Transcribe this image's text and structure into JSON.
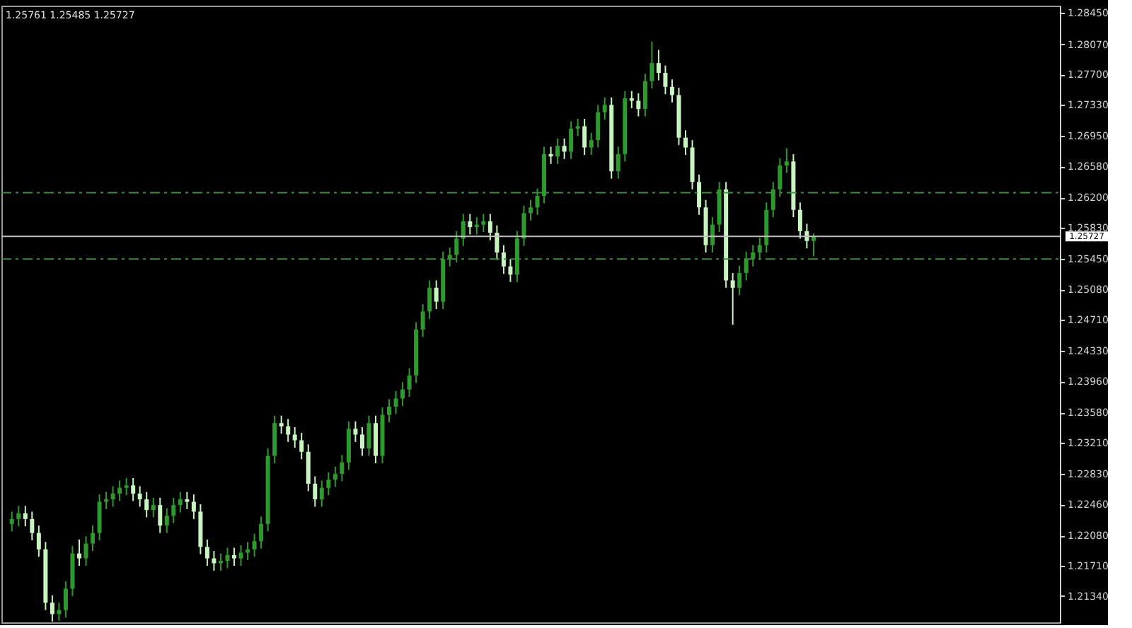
{
  "chart_data": {
    "type": "candlestick",
    "categories": [
      null,
      null,
      null,
      null,
      null,
      null,
      null,
      null,
      null,
      null,
      null,
      null,
      null,
      null,
      null,
      null,
      null,
      null,
      null,
      null,
      null,
      null,
      null,
      null,
      null,
      null,
      null,
      null,
      null,
      null,
      null,
      null,
      null,
      null,
      null,
      null,
      null,
      null,
      null,
      null,
      null,
      null,
      null,
      null,
      null,
      null,
      null,
      null,
      null,
      null,
      null,
      null,
      null,
      null,
      null,
      null,
      null,
      null,
      null,
      null,
      null,
      null,
      null,
      null,
      null,
      null,
      null,
      null,
      null,
      null,
      null,
      null,
      null,
      null,
      null,
      null,
      null,
      null,
      null,
      null,
      null,
      null,
      null,
      null,
      null,
      null,
      null,
      null,
      null,
      null,
      null,
      null,
      null,
      null,
      null,
      null,
      null,
      null,
      null,
      null,
      null,
      null,
      null,
      null,
      null,
      null,
      null,
      null,
      null,
      null,
      null,
      null,
      null,
      null,
      null,
      null,
      null,
      null,
      null,
      null,
      null,
      null,
      null,
      null,
      null,
      null,
      null,
      null,
      null,
      null,
      null,
      null,
      null,
      null,
      null,
      null,
      null,
      null,
      null,
      null,
      null,
      null,
      null,
      null,
      null,
      null,
      null,
      null,
      null,
      null,
      null,
      null,
      null,
      null,
      null
    ],
    "ohlc": [
      [
        1.2222,
        1.2237,
        1.2213,
        1.2228
      ],
      [
        1.2228,
        1.2244,
        1.2219,
        1.2235
      ],
      [
        1.2235,
        1.2244,
        1.2219,
        1.2228
      ],
      [
        1.2228,
        1.2237,
        1.2202,
        1.2211
      ],
      [
        1.2211,
        1.222,
        1.2182,
        1.2191
      ],
      [
        1.2191,
        1.22,
        1.2117,
        1.2126
      ],
      [
        1.2126,
        1.2135,
        1.2103,
        1.2112
      ],
      [
        1.2112,
        1.2126,
        1.2104,
        1.2117
      ],
      [
        1.2117,
        1.2152,
        1.2108,
        1.2143
      ],
      [
        1.2143,
        1.2195,
        1.2134,
        1.2186
      ],
      [
        1.2186,
        1.2203,
        1.2171,
        1.218
      ],
      [
        1.218,
        1.2207,
        1.2171,
        1.2198
      ],
      [
        1.2198,
        1.222,
        1.2189,
        1.2211
      ],
      [
        1.2211,
        1.2258,
        1.2202,
        1.2249
      ],
      [
        1.2249,
        1.2261,
        1.224,
        1.2252
      ],
      [
        1.2252,
        1.2268,
        1.2243,
        1.2259
      ],
      [
        1.2259,
        1.2275,
        1.225,
        1.2266
      ],
      [
        1.2266,
        1.2278,
        1.2257,
        1.2269
      ],
      [
        1.2269,
        1.2278,
        1.225,
        1.2259
      ],
      [
        1.2259,
        1.2268,
        1.2243,
        1.2252
      ],
      [
        1.2252,
        1.2261,
        1.223,
        1.2239
      ],
      [
        1.2239,
        1.2254,
        1.223,
        1.2245
      ],
      [
        1.2245,
        1.2254,
        1.2211,
        1.222
      ],
      [
        1.222,
        1.2241,
        1.2211,
        1.2232
      ],
      [
        1.2232,
        1.2254,
        1.2223,
        1.2245
      ],
      [
        1.2245,
        1.2261,
        1.2236,
        1.2252
      ],
      [
        1.2252,
        1.2261,
        1.224,
        1.2249
      ],
      [
        1.2249,
        1.2258,
        1.2228,
        1.2237
      ],
      [
        1.2237,
        1.2246,
        1.2185,
        1.2194
      ],
      [
        1.2194,
        1.2203,
        1.2171,
        1.218
      ],
      [
        1.218,
        1.2189,
        1.2165,
        1.2174
      ],
      [
        1.2174,
        1.2186,
        1.2165,
        1.2177
      ],
      [
        1.2177,
        1.2193,
        1.2168,
        1.2184
      ],
      [
        1.2184,
        1.2193,
        1.2171,
        1.218
      ],
      [
        1.218,
        1.2196,
        1.2171,
        1.2187
      ],
      [
        1.2187,
        1.22,
        1.2178,
        1.2191
      ],
      [
        1.2191,
        1.221,
        1.2182,
        1.2201
      ],
      [
        1.2201,
        1.2231,
        1.2192,
        1.2222
      ],
      [
        1.2222,
        1.2314,
        1.2213,
        1.2305
      ],
      [
        1.2305,
        1.2354,
        1.2296,
        1.2345
      ],
      [
        1.2345,
        1.2354,
        1.2332,
        1.2341
      ],
      [
        1.2341,
        1.235,
        1.2322,
        1.2331
      ],
      [
        1.2331,
        1.234,
        1.2315,
        1.2324
      ],
      [
        1.2324,
        1.2333,
        1.2301,
        1.231
      ],
      [
        1.231,
        1.2319,
        1.2262,
        1.2271
      ],
      [
        1.2271,
        1.228,
        1.2243,
        1.2252
      ],
      [
        1.2252,
        1.2275,
        1.2243,
        1.2266
      ],
      [
        1.2266,
        1.2285,
        1.2257,
        1.2276
      ],
      [
        1.2276,
        1.2292,
        1.2267,
        1.2283
      ],
      [
        1.2283,
        1.2306,
        1.2274,
        1.2297
      ],
      [
        1.2297,
        1.2347,
        1.2288,
        1.2338
      ],
      [
        1.2338,
        1.2347,
        1.2322,
        1.2331
      ],
      [
        1.2331,
        1.234,
        1.2305,
        1.2314
      ],
      [
        1.2314,
        1.2354,
        1.2305,
        1.2345
      ],
      [
        1.2345,
        1.2354,
        1.2296,
        1.2305
      ],
      [
        1.2305,
        1.2364,
        1.2296,
        1.2355
      ],
      [
        1.2355,
        1.2374,
        1.2346,
        1.2365
      ],
      [
        1.2365,
        1.2384,
        1.2356,
        1.2375
      ],
      [
        1.2375,
        1.2395,
        1.2366,
        1.2386
      ],
      [
        1.2386,
        1.2412,
        1.2377,
        1.2403
      ],
      [
        1.2403,
        1.2468,
        1.2394,
        1.2459
      ],
      [
        1.2459,
        1.249,
        1.245,
        1.2481
      ],
      [
        1.2481,
        1.2519,
        1.2472,
        1.251
      ],
      [
        1.251,
        1.2519,
        1.2484,
        1.2493
      ],
      [
        1.2493,
        1.2554,
        1.2484,
        1.2545
      ],
      [
        1.2545,
        1.2559,
        1.2536,
        1.255
      ],
      [
        1.255,
        1.2579,
        1.2541,
        1.257
      ],
      [
        1.257,
        1.26,
        1.2561,
        1.2591
      ],
      [
        1.2591,
        1.26,
        1.2575,
        1.2584
      ],
      [
        1.2584,
        1.2596,
        1.2575,
        1.2587
      ],
      [
        1.2587,
        1.26,
        1.2578,
        1.2591
      ],
      [
        1.2591,
        1.26,
        1.2568,
        1.2577
      ],
      [
        1.2577,
        1.2586,
        1.2544,
        1.2553
      ],
      [
        1.2553,
        1.2562,
        1.2527,
        1.2536
      ],
      [
        1.2536,
        1.2545,
        1.2517,
        1.2526
      ],
      [
        1.2526,
        1.2579,
        1.2517,
        1.257
      ],
      [
        1.257,
        1.261,
        1.2561,
        1.2601
      ],
      [
        1.2601,
        1.2617,
        1.2592,
        1.2608
      ],
      [
        1.2608,
        1.2631,
        1.2599,
        1.2622
      ],
      [
        1.2622,
        1.2682,
        1.2613,
        1.2673
      ],
      [
        1.2673,
        1.2682,
        1.2661,
        1.267
      ],
      [
        1.267,
        1.2692,
        1.2661,
        1.2683
      ],
      [
        1.2683,
        1.2692,
        1.2667,
        1.2676
      ],
      [
        1.2676,
        1.2713,
        1.2667,
        1.2704
      ],
      [
        1.2704,
        1.2716,
        1.2695,
        1.2707
      ],
      [
        1.2707,
        1.2716,
        1.2672,
        1.2681
      ],
      [
        1.2681,
        1.2699,
        1.2672,
        1.269
      ],
      [
        1.269,
        1.2733,
        1.2681,
        1.2724
      ],
      [
        1.2724,
        1.2742,
        1.2715,
        1.2733
      ],
      [
        1.2733,
        1.2742,
        1.2643,
        1.2652
      ],
      [
        1.2652,
        1.2682,
        1.2643,
        1.2673
      ],
      [
        1.2673,
        1.275,
        1.2664,
        1.2741
      ],
      [
        1.2741,
        1.275,
        1.2729,
        1.2738
      ],
      [
        1.2738,
        1.2747,
        1.2719,
        1.2728
      ],
      [
        1.2728,
        1.2771,
        1.2719,
        1.2762
      ],
      [
        1.2762,
        1.281,
        1.2753,
        1.2784
      ],
      [
        1.2784,
        1.28,
        1.2763,
        1.2772
      ],
      [
        1.2772,
        1.2781,
        1.2746,
        1.2755
      ],
      [
        1.2755,
        1.2764,
        1.2736,
        1.2745
      ],
      [
        1.2745,
        1.2754,
        1.2684,
        1.2693
      ],
      [
        1.2693,
        1.2702,
        1.2672,
        1.2681
      ],
      [
        1.2681,
        1.269,
        1.263,
        1.2639
      ],
      [
        1.2639,
        1.2648,
        1.2599,
        1.2608
      ],
      [
        1.2608,
        1.2617,
        1.2553,
        1.2562
      ],
      [
        1.2562,
        1.2596,
        1.2553,
        1.2587
      ],
      [
        1.2587,
        1.2639,
        1.2578,
        1.263
      ],
      [
        1.263,
        1.2639,
        1.251,
        1.2519
      ],
      [
        1.2519,
        1.2528,
        1.2465,
        1.251
      ],
      [
        1.251,
        1.2537,
        1.2501,
        1.2528
      ],
      [
        1.2528,
        1.2554,
        1.2519,
        1.2545
      ],
      [
        1.2545,
        1.2562,
        1.2536,
        1.2553
      ],
      [
        1.2553,
        1.2571,
        1.2544,
        1.2562
      ],
      [
        1.2562,
        1.2614,
        1.2553,
        1.2605
      ],
      [
        1.2605,
        1.2639,
        1.2596,
        1.263
      ],
      [
        1.263,
        1.2668,
        1.2621,
        1.2659
      ],
      [
        1.2659,
        1.268,
        1.265,
        1.2664
      ],
      [
        1.2664,
        1.2673,
        1.2596,
        1.2605
      ],
      [
        1.2605,
        1.2614,
        1.257,
        1.2579
      ],
      [
        1.2579,
        1.2588,
        1.2558,
        1.2567
      ],
      [
        1.2567,
        1.25761,
        1.25485,
        1.25727
      ],
      null,
      null,
      null,
      null,
      null,
      null,
      null,
      null,
      null,
      null,
      null,
      null,
      null,
      null,
      null,
      null,
      null,
      null,
      null,
      null,
      null,
      null,
      null,
      null,
      null,
      null,
      null,
      null,
      null,
      null,
      null,
      null,
      null,
      null,
      null
    ],
    "colors": [
      "#2e9a2e",
      "#2e9a2e",
      "#c8f4c0",
      "#c8f4c0",
      "#c8f4c0",
      "#c8f4c0",
      "#c8f4c0",
      "#2e9a2e",
      "#2e9a2e",
      "#2e9a2e",
      "#c8f4c0",
      "#2e9a2e",
      "#2e9a2e",
      "#2e9a2e",
      "#2e9a2e",
      "#2e9a2e",
      "#2e9a2e",
      "#2e9a2e",
      "#c8f4c0",
      "#c8f4c0",
      "#c8f4c0",
      "#2e9a2e",
      "#c8f4c0",
      "#2e9a2e",
      "#2e9a2e",
      "#2e9a2e",
      "#c8f4c0",
      "#c8f4c0",
      "#c8f4c0",
      "#c8f4c0",
      "#c8f4c0",
      "#2e9a2e",
      "#2e9a2e",
      "#c8f4c0",
      "#2e9a2e",
      "#2e9a2e",
      "#2e9a2e",
      "#2e9a2e",
      "#2e9a2e",
      "#2e9a2e",
      "#c8f4c0",
      "#c8f4c0",
      "#c8f4c0",
      "#c8f4c0",
      "#c8f4c0",
      "#c8f4c0",
      "#2e9a2e",
      "#2e9a2e",
      "#2e9a2e",
      "#2e9a2e",
      "#2e9a2e",
      "#c8f4c0",
      "#c8f4c0",
      "#2e9a2e",
      "#c8f4c0",
      "#2e9a2e",
      "#2e9a2e",
      "#2e9a2e",
      "#2e9a2e",
      "#2e9a2e",
      "#2e9a2e",
      "#2e9a2e",
      "#2e9a2e",
      "#c8f4c0",
      "#2e9a2e",
      "#2e9a2e",
      "#2e9a2e",
      "#2e9a2e",
      "#c8f4c0",
      "#2e9a2e",
      "#2e9a2e",
      "#c8f4c0",
      "#c8f4c0",
      "#c8f4c0",
      "#c8f4c0",
      "#2e9a2e",
      "#2e9a2e",
      "#2e9a2e",
      "#2e9a2e",
      "#2e9a2e",
      "#c8f4c0",
      "#2e9a2e",
      "#c8f4c0",
      "#2e9a2e",
      "#2e9a2e",
      "#c8f4c0",
      "#2e9a2e",
      "#2e9a2e",
      "#2e9a2e",
      "#c8f4c0",
      "#2e9a2e",
      "#2e9a2e",
      "#c8f4c0",
      "#c8f4c0",
      "#2e9a2e",
      "#2e9a2e",
      "#c8f4c0",
      "#c8f4c0",
      "#c8f4c0",
      "#c8f4c0",
      "#c8f4c0",
      "#c8f4c0",
      "#c8f4c0",
      "#c8f4c0",
      "#2e9a2e",
      "#2e9a2e",
      "#c8f4c0",
      "#c8f4c0",
      "#2e9a2e",
      "#2e9a2e",
      "#2e9a2e",
      "#2e9a2e",
      "#2e9a2e",
      "#2e9a2e",
      "#2e9a2e",
      "#2e9a2e",
      "#c8f4c0",
      "#c8f4c0",
      "#c8f4c0",
      "#2e9a2e",
      null,
      null,
      null,
      null,
      null,
      null,
      null,
      null,
      null,
      null,
      null,
      null,
      null,
      null,
      null,
      null,
      null,
      null,
      null,
      null,
      null,
      null,
      null,
      null,
      null,
      null,
      null,
      null,
      null,
      null,
      null,
      null,
      null,
      null,
      null
    ],
    "ylim": [
      1.2102,
      1.2854
    ],
    "yticks": [
      {
        "value": 1.2845,
        "label": "1.28450"
      },
      {
        "value": 1.2807,
        "label": "1.28070"
      },
      {
        "value": 1.277,
        "label": "1.27700"
      },
      {
        "value": 1.2733,
        "label": "1.27330"
      },
      {
        "value": 1.2695,
        "label": "1.26950"
      },
      {
        "value": 1.2658,
        "label": "1.26580"
      },
      {
        "value": 1.262,
        "label": "1.26200"
      },
      {
        "value": 1.2583,
        "label": "1.25830"
      },
      {
        "value": 1.2545,
        "label": "1.25450"
      },
      {
        "value": 1.2508,
        "label": "1.25080"
      },
      {
        "value": 1.2471,
        "label": "1.24710"
      },
      {
        "value": 1.2433,
        "label": "1.24330"
      },
      {
        "value": 1.2396,
        "label": "1.23960"
      },
      {
        "value": 1.2358,
        "label": "1.23580"
      },
      {
        "value": 1.2321,
        "label": "1.23210"
      },
      {
        "value": 1.2283,
        "label": "1.22830"
      },
      {
        "value": 1.2246,
        "label": "1.22460"
      },
      {
        "value": 1.2208,
        "label": "1.22080"
      },
      {
        "value": 1.2171,
        "label": "1.21710"
      },
      {
        "value": 1.2134,
        "label": "1.21340"
      }
    ],
    "ref_lines": [
      {
        "axis": "y",
        "value": 1.2626,
        "color": "#3f8f3f",
        "line_style": "dashed"
      },
      {
        "axis": "y",
        "value": 1.2545,
        "color": "#3f8f3f",
        "line_style": "dashed"
      },
      {
        "axis": "y",
        "value": 1.25727,
        "label": "1.25727",
        "color": "#bdbdbd",
        "line_style": "solid"
      }
    ],
    "annotations": [
      "1.25761 1.25485 1.25727"
    ],
    "grid": false,
    "tick_labels": "y"
  }
}
